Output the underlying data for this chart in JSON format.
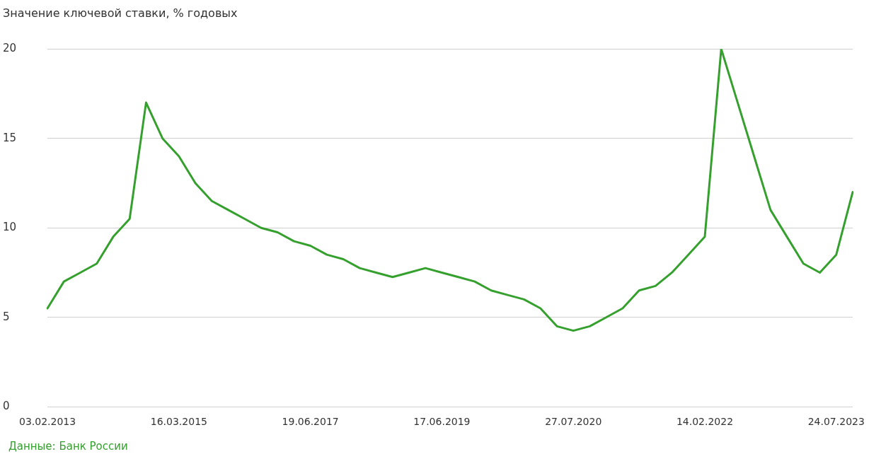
{
  "chart_data": {
    "type": "line",
    "title": "Значение ключевой ставки, % годовых",
    "categories": [
      "03.02.2013",
      null,
      null,
      null,
      null,
      null,
      null,
      null,
      "16.03.2015",
      null,
      null,
      null,
      null,
      null,
      null,
      null,
      "19.06.2017",
      null,
      null,
      null,
      null,
      null,
      null,
      null,
      "17.06.2019",
      null,
      null,
      null,
      null,
      null,
      null,
      null,
      "27.07.2020",
      null,
      null,
      null,
      null,
      null,
      null,
      null,
      "14.02.2022",
      null,
      null,
      null,
      null,
      null,
      null,
      null,
      "24.07.2023",
      null
    ],
    "series": [
      {
        "color": "#36a02f",
        "values": [
          5.5,
          7.0,
          7.5,
          8.0,
          9.5,
          10.5,
          17,
          15,
          14,
          12.5,
          11.5,
          11,
          10.5,
          10,
          9.75,
          9.25,
          9,
          8.5,
          8.25,
          7.75,
          7.5,
          7.25,
          7.5,
          7.75,
          7.5,
          7.25,
          7,
          6.5,
          6.25,
          6,
          5.5,
          4.5,
          4.25,
          4.5,
          5,
          5.5,
          6.5,
          6.75,
          7.5,
          8.5,
          9.5,
          20,
          17,
          14,
          11,
          9.5,
          8,
          7.5,
          8.5,
          12
        ]
      }
    ],
    "ylim": [
      0,
      20
    ],
    "yticks": [
      0,
      5,
      10,
      15,
      20
    ],
    "grid": "y",
    "legend": false,
    "marker": "none",
    "line_style": "solid",
    "annotations": [
      "Данные: Банк России"
    ]
  }
}
